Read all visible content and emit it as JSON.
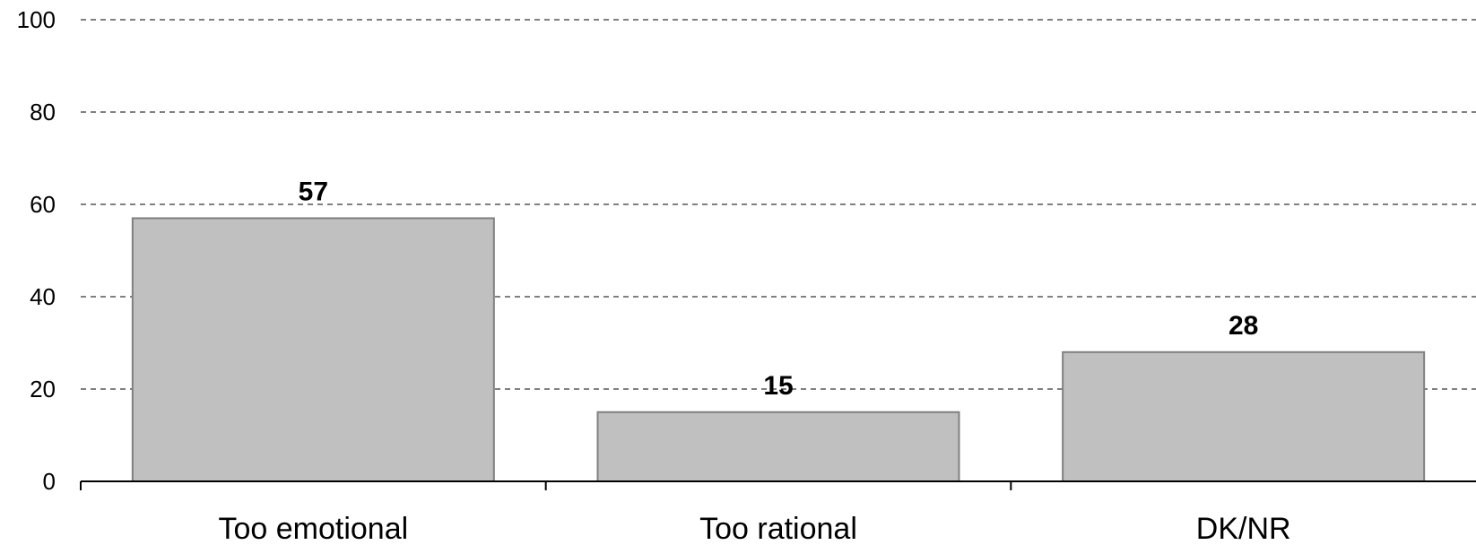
{
  "chart_data": {
    "type": "bar",
    "categories": [
      "Too emotional",
      "Too rational",
      "DK/NR"
    ],
    "values": [
      57,
      15,
      28
    ],
    "title": "",
    "xlabel": "",
    "ylabel": "",
    "ylim": [
      0,
      100
    ],
    "yticks": [
      0,
      20,
      40,
      60,
      80,
      100
    ],
    "grid": true,
    "grid_style": "dashed",
    "legend": "none",
    "data_labels": true,
    "colors": {
      "bar_fill": "#c0c0c0",
      "bar_border": "#808080",
      "axis": "#000000",
      "grid": "#000000",
      "text": "#000000"
    }
  }
}
